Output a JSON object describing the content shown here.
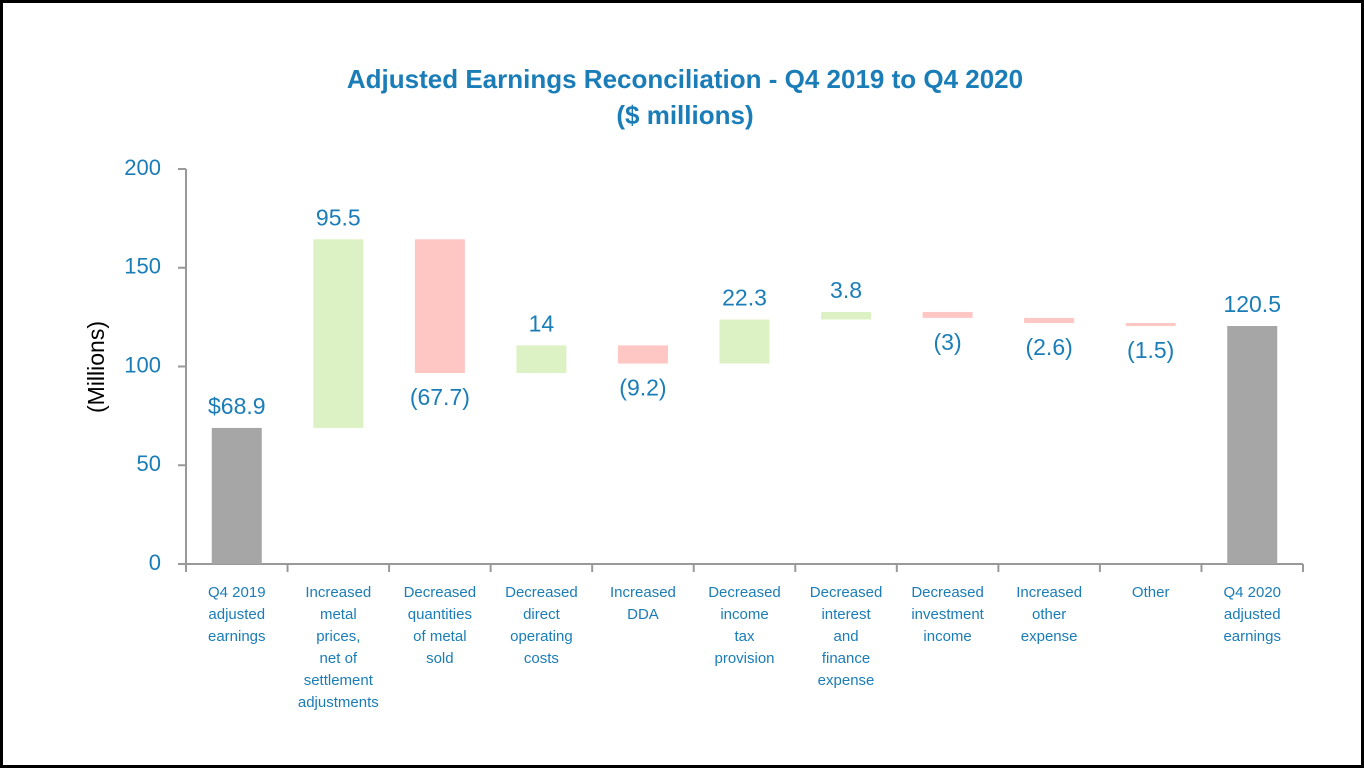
{
  "chart_data": {
    "type": "bar",
    "subtype": "waterfall",
    "title": [
      "Adjusted Earnings Reconciliation - Q4 2019 to Q4 2020",
      "($ millions)"
    ],
    "ylabel": "(Millions)",
    "xlabel": "",
    "ylim": [
      0,
      200
    ],
    "yticks": [
      0,
      50,
      100,
      150,
      200
    ],
    "grid": false,
    "categories": [
      [
        "Q4 2019",
        "adjusted",
        "earnings"
      ],
      [
        "Increased",
        "metal",
        "prices,",
        "net of",
        "settlement",
        "adjustments"
      ],
      [
        "Decreased",
        "quantities",
        "of metal",
        "sold"
      ],
      [
        "Decreased",
        "direct",
        "operating",
        "costs"
      ],
      [
        "Increased",
        "DDA"
      ],
      [
        "Decreased",
        "income",
        "tax",
        "provision"
      ],
      [
        "Decreased",
        "interest",
        "and",
        "finance",
        "expense"
      ],
      [
        "Decreased",
        "investment",
        "income"
      ],
      [
        "Increased",
        "other",
        "expense"
      ],
      [
        "Other"
      ],
      [
        "Q4 2020",
        "adjusted",
        "earnings"
      ]
    ],
    "bars": [
      {
        "kind": "total",
        "start": 0,
        "end": 68.9,
        "label": "$68.9",
        "label_pos": "above"
      },
      {
        "kind": "increase",
        "start": 68.9,
        "end": 164.4,
        "label": "95.5",
        "label_pos": "above"
      },
      {
        "kind": "decrease",
        "start": 164.4,
        "end": 96.7,
        "label": "(67.7)",
        "label_pos": "below"
      },
      {
        "kind": "increase",
        "start": 96.7,
        "end": 110.7,
        "label": "14",
        "label_pos": "above"
      },
      {
        "kind": "decrease",
        "start": 110.7,
        "end": 101.5,
        "label": "(9.2)",
        "label_pos": "below"
      },
      {
        "kind": "increase",
        "start": 101.5,
        "end": 123.8,
        "label": "22.3",
        "label_pos": "above"
      },
      {
        "kind": "increase",
        "start": 123.8,
        "end": 127.6,
        "label": "3.8",
        "label_pos": "above"
      },
      {
        "kind": "decrease",
        "start": 127.6,
        "end": 124.6,
        "label": "(3)",
        "label_pos": "below"
      },
      {
        "kind": "decrease",
        "start": 124.6,
        "end": 122.0,
        "label": "(2.6)",
        "label_pos": "below"
      },
      {
        "kind": "decrease",
        "start": 122.0,
        "end": 120.5,
        "label": "(1.5)",
        "label_pos": "below"
      },
      {
        "kind": "total",
        "start": 0,
        "end": 120.5,
        "label": "120.5",
        "label_pos": "above"
      }
    ],
    "colors": {
      "total": "#a6a6a6",
      "increase": "#ddf2c4",
      "decrease": "#ffc7c3",
      "text": "#1a7db8",
      "axis": "#999999"
    }
  }
}
